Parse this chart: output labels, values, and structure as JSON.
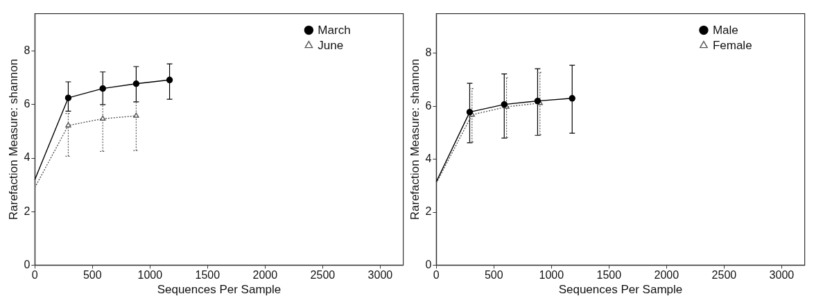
{
  "chart_data": [
    {
      "type": "line",
      "xlabel": "Sequences Per Sample",
      "ylabel": "Rarefaction Measure: shannon",
      "xlim": [
        0,
        3200
      ],
      "xticks": [
        0,
        500,
        1000,
        1500,
        2000,
        2500,
        3000
      ],
      "ylim": [
        0,
        9.4
      ],
      "yticks": [
        0,
        2,
        4,
        6,
        8
      ],
      "legend": "top right",
      "series": [
        {
          "name": "March",
          "color": "#000000",
          "marker": "circle",
          "line_style": "solid",
          "x": [
            0,
            290,
            590,
            880,
            1170
          ],
          "values": [
            3.2,
            6.25,
            6.6,
            6.78,
            6.92
          ],
          "errors": [
            null,
            [
              5.75,
              6.85
            ],
            [
              6.0,
              7.22
            ],
            [
              6.1,
              7.42
            ],
            [
              6.2,
              7.52
            ]
          ]
        },
        {
          "name": "June",
          "color": "#555555",
          "marker": "triangle",
          "line_style": "dotted",
          "x": [
            0,
            290,
            590,
            880
          ],
          "values": [
            2.9,
            5.22,
            5.47,
            5.58
          ],
          "errors": [
            null,
            [
              4.07,
              5.67
            ],
            [
              4.25,
              6.0
            ],
            [
              4.28,
              6.1
            ]
          ]
        }
      ]
    },
    {
      "type": "line",
      "xlabel": "Sequences Per Sample",
      "ylabel": "Rarefaction Measure: shannon",
      "xlim": [
        0,
        3200
      ],
      "xticks": [
        0,
        500,
        1000,
        1500,
        2000,
        2500,
        3000
      ],
      "ylim": [
        0,
        9.5
      ],
      "yticks": [
        0,
        2,
        4,
        6,
        8
      ],
      "legend": "top right",
      "series": [
        {
          "name": "Male",
          "color": "#000000",
          "marker": "circle",
          "line_style": "solid",
          "x": [
            0,
            290,
            590,
            880,
            1180
          ],
          "values": [
            3.15,
            5.78,
            6.07,
            6.2,
            6.3
          ],
          "errors": [
            null,
            [
              4.62,
              6.87
            ],
            [
              4.8,
              7.22
            ],
            [
              4.9,
              7.42
            ],
            [
              4.98,
              7.55
            ]
          ]
        },
        {
          "name": "Female",
          "color": "#555555",
          "marker": "triangle",
          "line_style": "dotted",
          "x": [
            0,
            310,
            610,
            900
          ],
          "values": [
            3.1,
            5.68,
            5.98,
            6.12
          ],
          "errors": [
            null,
            [
              4.65,
              6.67
            ],
            [
              4.82,
              7.08
            ],
            [
              4.92,
              7.28
            ]
          ]
        }
      ]
    }
  ]
}
